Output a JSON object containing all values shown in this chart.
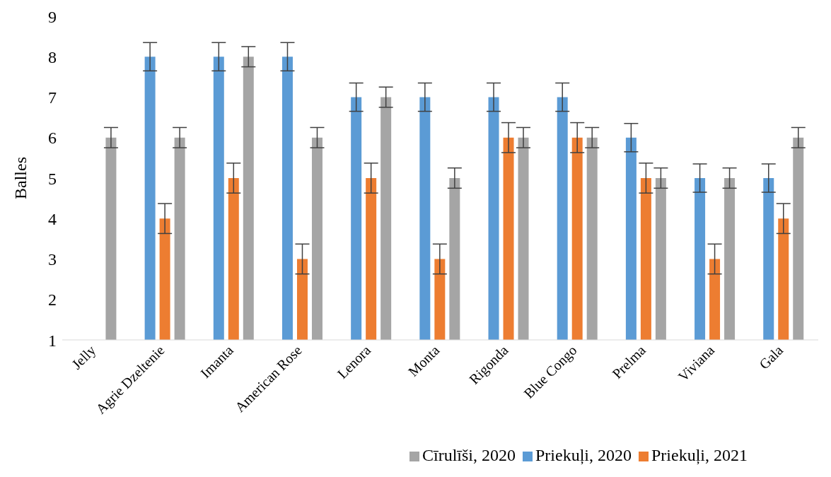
{
  "chart_data": {
    "type": "bar",
    "ylabel": "Balles",
    "categories": [
      "Jelly",
      "Agrie Dzeltenie",
      "Imanta",
      "American Rose",
      "Lenora",
      "Monta",
      "Rigonda",
      "Blue Congo",
      "Prelma",
      "Viviana",
      "Gala"
    ],
    "series": [
      {
        "name": "Priekuļi, 2020",
        "color": "#5b9bd5",
        "values": [
          null,
          8,
          8,
          8,
          7,
          7,
          7,
          7,
          6,
          5,
          5
        ],
        "errors": [
          null,
          0.35,
          0.35,
          0.35,
          0.35,
          0.35,
          0.35,
          0.35,
          0.35,
          0.35,
          0.35
        ]
      },
      {
        "name": "Priekuļi, 2021",
        "color": "#ed7d31",
        "values": [
          null,
          4,
          5,
          3,
          5,
          3,
          6,
          6,
          5,
          3,
          4
        ],
        "errors": [
          null,
          0.37,
          0.37,
          0.37,
          0.37,
          0.37,
          0.37,
          0.37,
          0.37,
          0.37,
          0.37
        ]
      },
      {
        "name": "Cīrulīši, 2020",
        "color": "#a5a5a5",
        "values": [
          6,
          6,
          8,
          6,
          7,
          5,
          6,
          6,
          5,
          5,
          6
        ],
        "errors": [
          0.25,
          0.25,
          0.25,
          0.25,
          0.25,
          0.25,
          0.25,
          0.25,
          0.25,
          0.25,
          0.25
        ]
      }
    ],
    "ylim": [
      1,
      9
    ],
    "yticks": [
      1,
      2,
      3,
      4,
      5,
      6,
      7,
      8,
      9
    ],
    "grid": false,
    "legend": "bottom right"
  }
}
